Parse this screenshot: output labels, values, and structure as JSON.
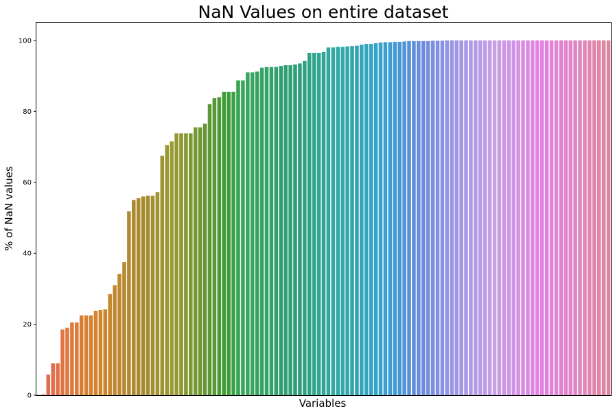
{
  "chart_data": {
    "type": "bar",
    "title": "NaN Values on entire dataset",
    "xlabel": "Variables",
    "ylabel": "% of NaN values",
    "ylim": [
      0,
      105
    ],
    "yticks": [
      0,
      20,
      40,
      60,
      80,
      100
    ],
    "ytick_labels": [
      "0",
      "20",
      "40",
      "60",
      "80",
      "100"
    ],
    "xtick_labels": [],
    "grid": false,
    "legend": "none",
    "palette": "husl",
    "values": [
      0.1,
      0.2,
      5.8,
      9.0,
      9.0,
      18.5,
      19.0,
      20.5,
      20.5,
      22.5,
      22.5,
      22.5,
      23.8,
      24.0,
      24.2,
      28.5,
      31.0,
      34.2,
      37.5,
      51.8,
      55.0,
      55.5,
      56.0,
      56.2,
      56.2,
      57.2,
      67.5,
      70.5,
      71.5,
      73.8,
      73.8,
      73.8,
      73.8,
      75.5,
      75.5,
      76.5,
      82.0,
      83.7,
      84.0,
      85.5,
      85.5,
      85.5,
      88.7,
      88.7,
      91.0,
      91.0,
      91.2,
      92.3,
      92.5,
      92.5,
      92.5,
      92.8,
      93.0,
      93.0,
      93.2,
      93.5,
      94.2,
      96.5,
      96.5,
      96.5,
      96.7,
      98.0,
      98.0,
      98.2,
      98.2,
      98.3,
      98.4,
      98.5,
      98.8,
      99.0,
      99.0,
      99.2,
      99.4,
      99.5,
      99.5,
      99.6,
      99.6,
      99.7,
      99.8,
      99.8,
      99.8,
      99.8,
      99.8,
      99.9,
      99.9,
      99.9,
      100,
      100,
      100,
      100,
      100,
      100,
      100,
      100,
      100,
      100,
      100,
      100,
      100,
      100,
      100,
      100,
      100,
      100,
      100,
      100,
      100,
      100,
      100,
      100,
      100,
      100,
      100,
      100,
      100,
      100,
      100,
      100,
      100,
      100,
      100
    ]
  }
}
